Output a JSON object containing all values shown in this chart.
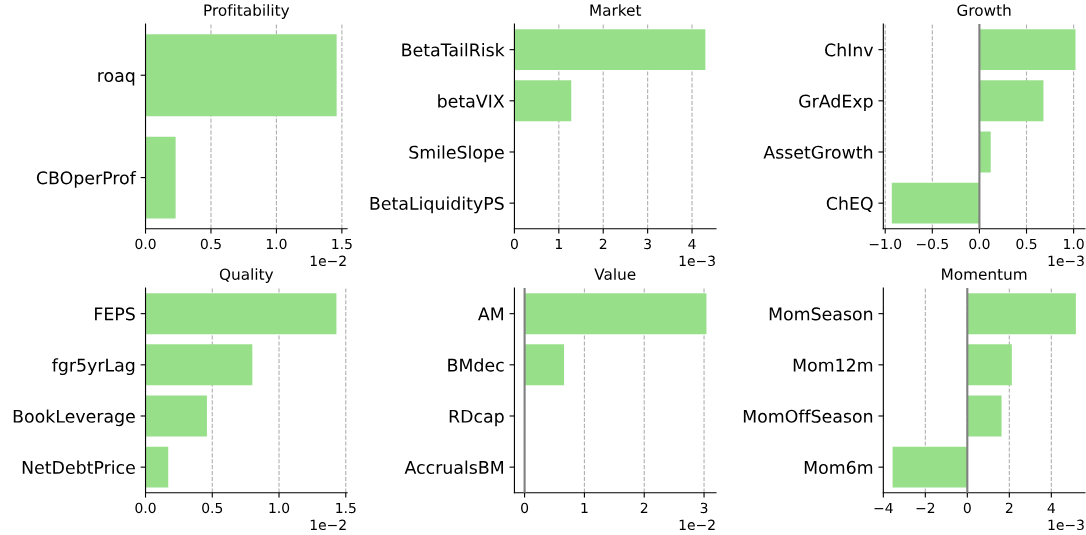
{
  "chart_data": [
    {
      "type": "bar",
      "orientation": "horizontal",
      "title": "Profitability",
      "categories": [
        "roaq",
        "CBOperProf"
      ],
      "values": [
        1.46,
        0.23
      ],
      "color": "#98df8a",
      "xlim": [
        0,
        1.54
      ],
      "xticks": [
        {
          "value": 0,
          "label": "0.0"
        },
        0.5,
        {
          "value": 1,
          "label": "1.0"
        },
        1.5
      ],
      "grid": "x",
      "annotations": [
        "1e−2"
      ]
    },
    {
      "type": "bar",
      "orientation": "horizontal",
      "title": "Market",
      "categories": [
        "BetaTailRisk",
        "betaVIX",
        "SmileSlope",
        "BetaLiquidityPS"
      ],
      "values": [
        4.3,
        1.28,
        0,
        0
      ],
      "color": "#98df8a",
      "xlim": [
        0,
        4.54
      ],
      "xticks": [
        0,
        1,
        2,
        3,
        4
      ],
      "grid": "x",
      "annotations": [
        "1e−3"
      ]
    },
    {
      "type": "bar",
      "orientation": "horizontal",
      "title": "Growth",
      "categories": [
        "ChInv",
        "GrAdExp",
        "AssetGrowth",
        "ChEQ"
      ],
      "values": [
        1.02,
        0.68,
        0.12,
        -0.93
      ],
      "color": "#98df8a",
      "xlim": [
        -1.02,
        1.12
      ],
      "xticks": [
        {
          "value": -1,
          "label": "−1.0"
        },
        {
          "value": -0.5,
          "label": "−0.5"
        },
        {
          "value": 0,
          "label": "0.0"
        },
        0.5,
        {
          "value": 1,
          "label": "1.0"
        }
      ],
      "grid": "x",
      "ref_lines": [
        {
          "axis": "x",
          "value": 0,
          "color": "#808080"
        }
      ],
      "annotations": [
        "1e−3"
      ]
    },
    {
      "type": "bar",
      "orientation": "horizontal",
      "title": "Quality",
      "categories": [
        "FEPS",
        "fgr5yrLag",
        "BookLeverage",
        "NetDebtPrice"
      ],
      "values": [
        1.43,
        0.8,
        0.46,
        0.17
      ],
      "color": "#98df8a",
      "xlim": [
        0,
        1.51
      ],
      "xticks": [
        {
          "value": 0,
          "label": "0.0"
        },
        0.5,
        {
          "value": 1,
          "label": "1.0"
        },
        1.5
      ],
      "grid": "x",
      "annotations": [
        "1e−2"
      ]
    },
    {
      "type": "bar",
      "orientation": "horizontal",
      "title": "Value",
      "categories": [
        "AM",
        "BMdec",
        "RDcap",
        "AccrualsBM"
      ],
      "values": [
        3.04,
        0.66,
        0,
        null
      ],
      "color": "#98df8a",
      "xlim": [
        -0.17,
        3.2
      ],
      "xticks": [
        0,
        1,
        2,
        3
      ],
      "grid": "x",
      "ref_lines": [
        {
          "axis": "x",
          "value": 0,
          "color": "#808080"
        }
      ],
      "annotations": [
        "1e−2"
      ]
    },
    {
      "type": "bar",
      "orientation": "horizontal",
      "title": "Momentum",
      "categories": [
        "MomSeason",
        "Mom12m",
        "MomOffSeason",
        "Mom6m"
      ],
      "values": [
        5.17,
        2.12,
        1.63,
        -3.56
      ],
      "color": "#98df8a",
      "xlim": [
        -4,
        5.6
      ],
      "xticks": [
        {
          "value": -4,
          "label": "−4"
        },
        {
          "value": -2,
          "label": "−2"
        },
        0,
        2,
        4
      ],
      "grid": "x",
      "ref_lines": [
        {
          "axis": "x",
          "value": 0,
          "color": "#808080"
        }
      ],
      "annotations": [
        "1e−3"
      ]
    }
  ]
}
